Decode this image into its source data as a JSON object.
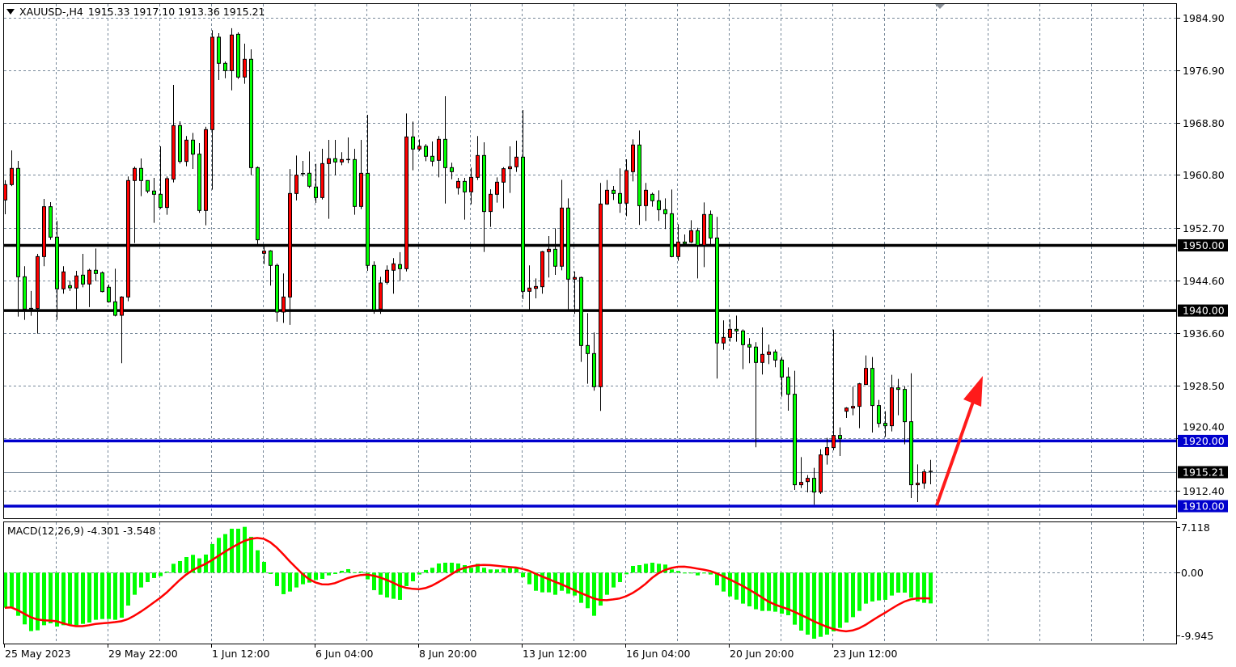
{
  "header": {
    "symbol_timeframe": "XAUUSD-,H4",
    "ohlc": "1915.33 1917.10 1913.36 1915.21",
    "menu_icon": "triangle-down-icon"
  },
  "colors": {
    "bull_body": "#ff0000",
    "bear_body": "#00ff00",
    "wick": "#000000",
    "grid": "#778899",
    "support_resistance_black": "#000000",
    "support_resistance_blue": "#0000cd",
    "current_price_line": "#8090a0",
    "macd_histogram": "#00ff00",
    "macd_signal": "#ff0000",
    "arrow": "#ff1a1a"
  },
  "chart_data": [
    {
      "type": "candlestick",
      "symbol": "XAUUSD-",
      "timeframe": "H4",
      "y_ticks": [
        "1984.90",
        "1976.90",
        "1968.80",
        "1960.80",
        "1952.70",
        "1944.60",
        "1936.60",
        "1928.50",
        "1920.40",
        "1912.40"
      ],
      "x_labels": [
        "25 May 2023",
        "29 May 22:00",
        "1 Jun 12:00",
        "6 Jun 04:00",
        "8 Jun 20:00",
        "13 Jun 12:00",
        "16 Jun 04:00",
        "20 Jun 20:00",
        "23 Jun 12:00"
      ],
      "grid": true,
      "current_price": "1915.21",
      "levels": [
        {
          "price": "1950.00",
          "color": "#000000"
        },
        {
          "price": "1940.00",
          "color": "#000000"
        },
        {
          "price": "1920.00",
          "color": "#0000cd"
        },
        {
          "price": "1910.00",
          "color": "#0000cd"
        }
      ],
      "annotation": "red upward arrow",
      "ohlc_fields": [
        "open",
        "high",
        "low",
        "close"
      ],
      "candles": [
        [
          1956.96,
          1960.0,
          1954.77,
          1959.32
        ],
        [
          1959.32,
          1964.57,
          1959.1,
          1961.8
        ],
        [
          1961.8,
          1962.96,
          1939.07,
          1945.18
        ],
        [
          1945.18,
          1946.8,
          1938.57,
          1940.22
        ],
        [
          1940.22,
          1943.0,
          1939.19,
          1940.31
        ],
        [
          1940.31,
          1948.7,
          1936.46,
          1948.28
        ],
        [
          1948.28,
          1957.13,
          1946.8,
          1955.93
        ],
        [
          1955.93,
          1956.63,
          1950.85,
          1951.26
        ],
        [
          1951.26,
          1953.74,
          1938.57,
          1943.33
        ],
        [
          1943.33,
          1946.8,
          1942.58,
          1945.93
        ],
        [
          1943.82,
          1944.56,
          1943.0,
          1943.49
        ],
        [
          1943.45,
          1946.09,
          1940.22,
          1945.31
        ],
        [
          1945.43,
          1948.7,
          1943.57,
          1944.07
        ],
        [
          1944.07,
          1946.42,
          1940.52,
          1946.18
        ],
        [
          1946.18,
          1949.52,
          1944.52,
          1945.68
        ],
        [
          1945.8,
          1946.0,
          1942.79,
          1942.91
        ],
        [
          1943.57,
          1944.0,
          1941.2,
          1941.34
        ],
        [
          1941.34,
          1946.42,
          1939.1,
          1939.27
        ],
        [
          1939.27,
          1942.2,
          1931.92,
          1942.08
        ],
        [
          1942.08,
          1960.56,
          1941.42,
          1959.94
        ],
        [
          1959.94,
          1962.09,
          1950.35,
          1961.8
        ],
        [
          1961.8,
          1963.33,
          1957.54,
          1959.94
        ],
        [
          1959.94,
          1960.0,
          1958.0,
          1958.33
        ],
        [
          1958.33,
          1960.35,
          1953.45,
          1957.83
        ],
        [
          1957.83,
          1965.19,
          1955.6,
          1955.81
        ],
        [
          1955.81,
          1960.56,
          1954.69,
          1960.23
        ],
        [
          1960.15,
          1974.61,
          1959.65,
          1968.37
        ],
        [
          1968.37,
          1969.03,
          1962.54,
          1962.87
        ],
        [
          1962.87,
          1966.76,
          1962.13,
          1966.14
        ],
        [
          1966.14,
          1967.25,
          1961.72,
          1963.99
        ],
        [
          1963.99,
          1965.68,
          1954.98,
          1955.35
        ],
        [
          1955.35,
          1968.2,
          1953.08,
          1967.75
        ],
        [
          1967.75,
          1983.0,
          1958.53,
          1981.93
        ],
        [
          1981.93,
          1982.55,
          1975.36,
          1977.92
        ],
        [
          1977.92,
          1978.2,
          1975.64,
          1976.8
        ],
        [
          1976.8,
          1983.3,
          1973.78,
          1982.26
        ],
        [
          1982.38,
          1982.67,
          1975.52,
          1975.81
        ],
        [
          1975.81,
          1980.93,
          1974.78,
          1978.54
        ],
        [
          1978.54,
          1980.07,
          1960.77,
          1961.92
        ],
        [
          1961.92,
          1962.1,
          1950.2,
          1950.85
        ],
        [
          1948.78,
          1949.8,
          1947.13,
          1949.11
        ],
        [
          1949.15,
          1949.27,
          1943.82,
          1946.92
        ],
        [
          1946.92,
          1947.2,
          1938.3,
          1939.77
        ],
        [
          1939.77,
          1945.68,
          1938.1,
          1942.08
        ],
        [
          1942.08,
          1961.7,
          1937.8,
          1957.95
        ],
        [
          1957.95,
          1963.78,
          1956.9,
          1960.77
        ],
        [
          1960.9,
          1962.96,
          1960.56,
          1961.0
        ],
        [
          1961.06,
          1964.4,
          1958.8,
          1959.07
        ],
        [
          1958.95,
          1962.5,
          1956.5,
          1957.33
        ],
        [
          1957.33,
          1964.81,
          1957.04,
          1962.54
        ],
        [
          1962.54,
          1966.18,
          1954.07,
          1963.29
        ],
        [
          1963.29,
          1966.18,
          1960.76,
          1962.79
        ],
        [
          1962.79,
          1964.28,
          1962.29,
          1963.16
        ],
        [
          1963.16,
          1966.55,
          1962.6,
          1963.1
        ],
        [
          1963.16,
          1964.8,
          1954.69,
          1955.97
        ],
        [
          1955.97,
          1966.18,
          1955.56,
          1961.05
        ],
        [
          1961.05,
          1970.02,
          1946.09,
          1946.92
        ],
        [
          1946.92,
          1947.54,
          1939.5,
          1940.1
        ],
        [
          1940.23,
          1945.18,
          1939.48,
          1944.23
        ],
        [
          1944.32,
          1946.92,
          1944.0,
          1946.18
        ],
        [
          1946.18,
          1948.04,
          1942.58,
          1947.17
        ],
        [
          1947.05,
          1948.95,
          1944.56,
          1946.42
        ],
        [
          1946.42,
          1970.23,
          1946.0,
          1966.63
        ],
        [
          1966.63,
          1968.99,
          1961.51,
          1964.77
        ],
        [
          1964.77,
          1966.26,
          1964.48,
          1965.19
        ],
        [
          1965.19,
          1965.52,
          1962.9,
          1963.66
        ],
        [
          1963.66,
          1965.93,
          1962.13,
          1962.91
        ],
        [
          1963.04,
          1966.76,
          1960.43,
          1966.26
        ],
        [
          1966.26,
          1972.87,
          1956.42,
          1961.92
        ],
        [
          1961.92,
          1962.67,
          1960.14,
          1961.3
        ],
        [
          1958.82,
          1960.35,
          1957.79,
          1959.81
        ],
        [
          1959.81,
          1960.35,
          1953.95,
          1958.2
        ],
        [
          1958.2,
          1961.92,
          1956.3,
          1960.43
        ],
        [
          1960.43,
          1966.76,
          1960.02,
          1963.78
        ],
        [
          1963.78,
          1965.81,
          1948.99,
          1955.19
        ],
        [
          1955.19,
          1958.6,
          1952.83,
          1957.83
        ],
        [
          1957.83,
          1960.43,
          1956.55,
          1959.69
        ],
        [
          1959.69,
          1962.0,
          1955.68,
          1961.76
        ],
        [
          1961.76,
          1965.19,
          1958.04,
          1962.05
        ],
        [
          1962.05,
          1966.06,
          1961.26,
          1963.53
        ],
        [
          1963.53,
          1970.77,
          1941.75,
          1942.95
        ],
        [
          1942.95,
          1946.92,
          1940.1,
          1943.45
        ],
        [
          1943.4,
          1944.93,
          1941.88,
          1943.69
        ],
        [
          1943.65,
          1949.15,
          1942.58,
          1949.03
        ],
        [
          1949.03,
          1951.42,
          1945.06,
          1949.4
        ],
        [
          1949.4,
          1952.62,
          1945.47,
          1946.8
        ],
        [
          1946.8,
          1960.06,
          1946.17,
          1955.72
        ],
        [
          1955.72,
          1957.21,
          1940.1,
          1944.81
        ],
        [
          1944.81,
          1946.0,
          1939.48,
          1945.06
        ],
        [
          1945.06,
          1945.2,
          1932.12,
          1934.64
        ],
        [
          1934.64,
          1939.6,
          1928.78,
          1933.4
        ],
        [
          1933.4,
          1936.63,
          1927.7,
          1928.32
        ],
        [
          1928.32,
          1959.57,
          1924.6,
          1956.34
        ],
        [
          1956.34,
          1960.02,
          1956.22,
          1958.45
        ],
        [
          1958.45,
          1959.11,
          1956.96,
          1957.95
        ],
        [
          1957.95,
          1961.8,
          1954.98,
          1956.47
        ],
        [
          1956.47,
          1963.2,
          1954.48,
          1961.47
        ],
        [
          1961.3,
          1966.26,
          1959.81,
          1965.39
        ],
        [
          1965.39,
          1967.62,
          1953.12,
          1956.09
        ],
        [
          1956.09,
          1959.57,
          1953.74,
          1958.45
        ],
        [
          1957.83,
          1958.08,
          1955.93,
          1956.84
        ],
        [
          1956.84,
          1958.45,
          1953.74,
          1955.47
        ],
        [
          1955.47,
          1957.21,
          1952.5,
          1954.85
        ],
        [
          1954.85,
          1958.57,
          1948.16,
          1948.28
        ],
        [
          1948.28,
          1953.24,
          1947.62,
          1950.51
        ],
        [
          1950.51,
          1951.67,
          1950.02,
          1950.27
        ],
        [
          1950.51,
          1953.86,
          1950.35,
          1952.25
        ],
        [
          1952.25,
          1952.7,
          1944.93,
          1950.02
        ],
        [
          1950.02,
          1956.59,
          1946.67,
          1954.73
        ],
        [
          1954.73,
          1955.35,
          1950.02,
          1951.13
        ],
        [
          1951.13,
          1954.36,
          1929.56,
          1935.02
        ],
        [
          1935.02,
          1938.49,
          1933.98,
          1935.88
        ],
        [
          1935.88,
          1938.65,
          1935.22,
          1937.12
        ],
        [
          1937.12,
          1939.23,
          1935.22,
          1936.87
        ],
        [
          1936.87,
          1937.12,
          1931.01,
          1934.77
        ],
        [
          1934.77,
          1935.76,
          1931.92,
          1934.4
        ],
        [
          1934.4,
          1935.14,
          1919.02,
          1932.04
        ],
        [
          1932.04,
          1937.41,
          1930.18,
          1933.28
        ],
        [
          1933.28,
          1934.77,
          1931.79,
          1933.65
        ],
        [
          1933.65,
          1934.02,
          1931.3,
          1932.41
        ],
        [
          1932.41,
          1932.91,
          1926.79,
          1929.81
        ],
        [
          1929.81,
          1931.29,
          1924.64,
          1927.16
        ],
        [
          1927.16,
          1930.76,
          1912.49,
          1913.28
        ],
        [
          1913.28,
          1917.53,
          1912.78,
          1913.65
        ],
        [
          1913.77,
          1914.76,
          1912.12,
          1914.27
        ],
        [
          1914.27,
          1915.88,
          1910.22,
          1912.16
        ],
        [
          1912.16,
          1918.73,
          1911.87,
          1917.86
        ],
        [
          1917.86,
          1920.47,
          1916.37,
          1918.98
        ],
        [
          1918.98,
          1937.08,
          1918.56,
          1920.84
        ],
        [
          1920.84,
          1922.08,
          1917.7,
          1920.34
        ],
        [
          1924.56,
          1925.18,
          1923.52,
          1925.05
        ],
        [
          1925.05,
          1928.32,
          1923.94,
          1925.3
        ],
        [
          1925.3,
          1928.9,
          1921.95,
          1928.77
        ],
        [
          1928.65,
          1933.11,
          1928.6,
          1931.13
        ],
        [
          1931.13,
          1932.87,
          1921.29,
          1925.43
        ],
        [
          1925.43,
          1926.3,
          1922.08,
          1922.7
        ],
        [
          1922.7,
          1924.56,
          1920.63,
          1922.33
        ],
        [
          1922.33,
          1930.14,
          1921.46,
          1928.15
        ],
        [
          1928.15,
          1929.52,
          1923.94,
          1927.91
        ],
        [
          1927.91,
          1928.4,
          1919.47,
          1922.95
        ],
        [
          1922.95,
          1930.39,
          1911.25,
          1913.28
        ],
        [
          1913.28,
          1916.4,
          1910.63,
          1913.52
        ],
        [
          1913.52,
          1915.67,
          1912.65,
          1915.26
        ],
        [
          1915.33,
          1917.1,
          1913.36,
          1915.21
        ]
      ]
    },
    {
      "type": "bar",
      "title": "MACD(12,26,9) -4.301 -3.548",
      "y_ticks": [
        "7.118",
        "0.00",
        "-9.945"
      ],
      "ylim": [
        -9.945,
        7.118
      ],
      "signal_period": 9,
      "main_values": [
        -4.9,
        -4.82,
        -6.03,
        -7.23,
        -8.17,
        -8.06,
        -7.35,
        -7.08,
        -7.53,
        -7.35,
        -7.23,
        -7.35,
        -7.16,
        -6.97,
        -6.59,
        -6.48,
        -6.48,
        -6.59,
        -6.29,
        -4.6,
        -3.09,
        -2.07,
        -1.32,
        -0.75,
        -0.49,
        0.15,
        1.24,
        1.62,
        2.18,
        2.49,
        2.0,
        2.53,
        4.0,
        4.86,
        5.39,
        6.14,
        6.14,
        6.4,
        5.01,
        3.13,
        1.51,
        -0.19,
        -1.88,
        -3.01,
        -2.64,
        -2.07,
        -1.62,
        -1.39,
        -1.02,
        -0.87,
        -0.38,
        -0.19,
        0.26,
        0.49,
        0.05,
        0.15,
        -0.94,
        -2.45,
        -3.09,
        -3.47,
        -3.65,
        -3.8,
        -1.88,
        -1.21,
        -0.26,
        0.38,
        0.68,
        1.28,
        1.39,
        1.39,
        1.28,
        1.05,
        0.68,
        1.24,
        0.68,
        0.45,
        0.45,
        0.57,
        0.64,
        0.64,
        -0.64,
        -1.62,
        -2.53,
        -2.75,
        -2.75,
        -3.09,
        -2.53,
        -2.94,
        -3.2,
        -4.22,
        -4.97,
        -6.03,
        -4.6,
        -3.09,
        -2.07,
        -1.32,
        -0.23,
        0.94,
        1.05,
        1.24,
        1.39,
        1.24,
        1.13,
        0.45,
        0.23,
        -0.11,
        -0.11,
        -0.38,
        -0.11,
        -0.26,
        -1.77,
        -2.64,
        -3.32,
        -3.77,
        -4.33,
        -4.71,
        -5.12,
        -5.35,
        -5.35,
        -5.46,
        -5.73,
        -5.95,
        -7.27,
        -8.1,
        -8.66,
        -9.23,
        -8.97,
        -8.66,
        -8.21,
        -7.72,
        -6.97,
        -6.22,
        -5.35,
        -4.33,
        -4.03,
        -3.88,
        -3.8,
        -3.2,
        -2.79,
        -2.79,
        -3.5,
        -4.03,
        -4.22,
        -4.301
      ]
    }
  ]
}
